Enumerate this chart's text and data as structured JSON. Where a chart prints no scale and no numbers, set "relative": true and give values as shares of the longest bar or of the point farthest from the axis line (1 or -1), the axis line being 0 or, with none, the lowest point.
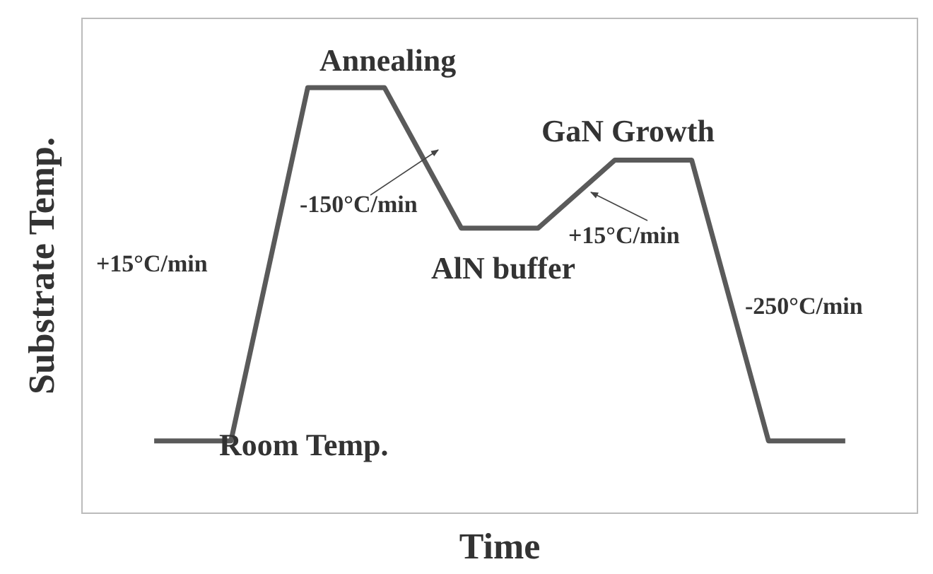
{
  "chart_data": {
    "type": "line",
    "relative": true,
    "xlabel": "Time",
    "ylabel": "Substrate Temp.",
    "categories": [
      null,
      null,
      null,
      null,
      null,
      null,
      null,
      null,
      null,
      null
    ],
    "series": [
      {
        "color": "#5a5a5a",
        "values": [
          0.17,
          0.17,
          1,
          1,
          0.67,
          0.67,
          0.83,
          0.83,
          0.17,
          0.17
        ]
      }
    ],
    "marker": "none",
    "line_style": "solid",
    "grid": false,
    "annotations": [
      "+15°C/min",
      "Annealing",
      "-150°C/min",
      "AlN buffer",
      "GaN Growth",
      "+15°C/min",
      "-250°C/min",
      "Room Temp."
    ]
  }
}
